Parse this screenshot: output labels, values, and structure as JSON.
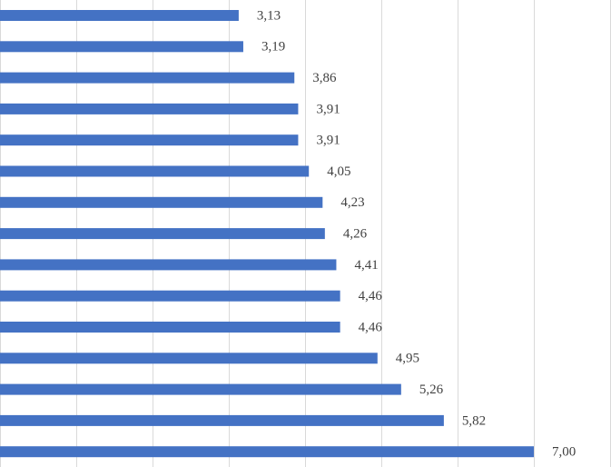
{
  "chart_data": {
    "type": "barh",
    "categories": [
      null,
      null,
      null,
      null,
      null,
      null,
      null,
      null,
      null,
      null,
      null,
      null,
      null,
      null,
      null
    ],
    "values": [
      3.13,
      3.19,
      3.86,
      3.91,
      3.91,
      4.05,
      4.23,
      4.26,
      4.41,
      4.46,
      4.46,
      4.95,
      5.26,
      5.82,
      7.0
    ],
    "value_labels": [
      "3,13",
      "3,19",
      "3,86",
      "3,91",
      "3,91",
      "4,05",
      "4,23",
      "4,26",
      "4,41",
      "4,46",
      "4,46",
      "4,95",
      "5,26",
      "5,82",
      "7,00"
    ],
    "color": "#4472c4",
    "xlim": [
      0,
      8
    ],
    "xticks": [
      0,
      1,
      2,
      3,
      4,
      5,
      6,
      7,
      8
    ],
    "grid": true
  }
}
